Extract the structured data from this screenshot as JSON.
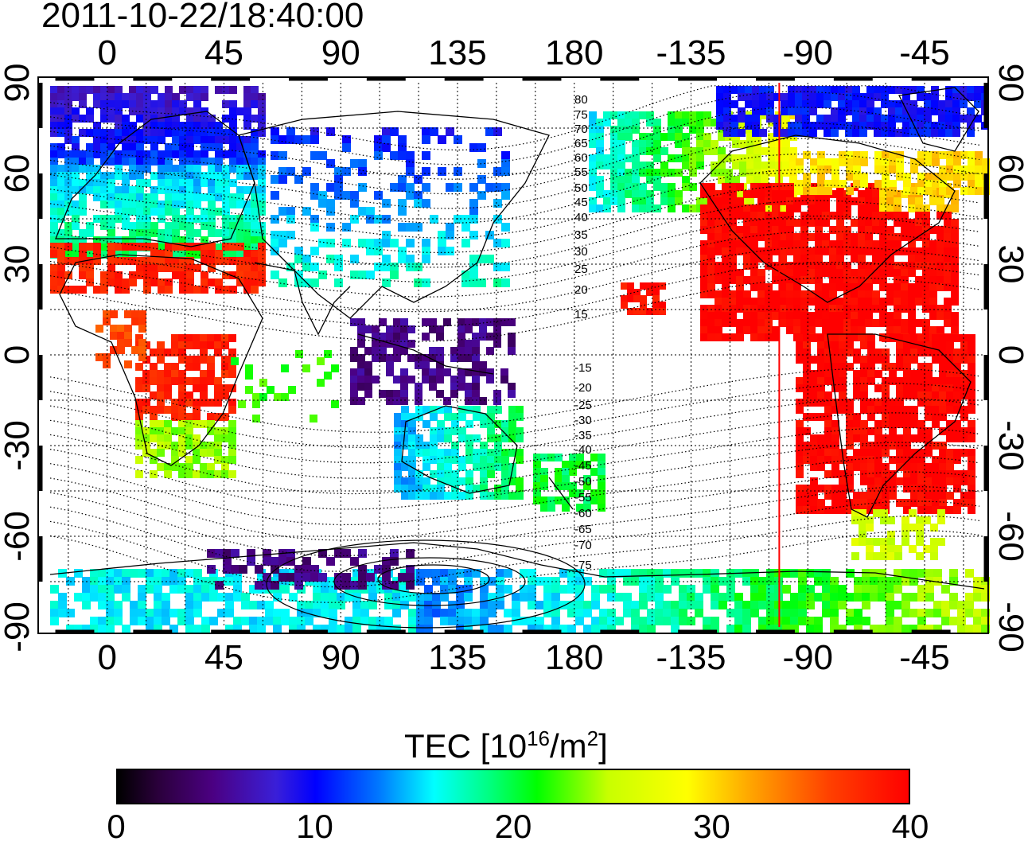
{
  "timestamp": "2011-10-22/18:40:00",
  "axes": {
    "x_ticks": [
      "0",
      "45",
      "90",
      "135",
      "180",
      "-135",
      "-90",
      "-45"
    ],
    "y_ticks": [
      "90",
      "60",
      "30",
      "0",
      "-30",
      "-60",
      "-90"
    ]
  },
  "contour_labels": [
    "80",
    "75",
    "70",
    "65",
    "60",
    "55",
    "50",
    "45",
    "40",
    "35",
    "30",
    "25",
    "20",
    "15",
    "-15",
    "-20",
    "-25",
    "-30",
    "-35",
    "-40",
    "-45",
    "-50",
    "-55",
    "-60",
    "-65",
    "-70",
    "-75"
  ],
  "colorbar": {
    "title": "TEC  [10",
    "title_exp": "16",
    "title_unit": "/m",
    "title_unit_exp": "2",
    "title_close": "]",
    "ticks": [
      "0",
      "10",
      "20",
      "30",
      "40"
    ],
    "min": 0,
    "max": 40
  },
  "terminator_line": {
    "longitude": -101,
    "color": "#ff0000"
  },
  "colors": {
    "low": "#000000",
    "mid_low": "#0000ff",
    "mid": "#00ffff",
    "mid_high": "#00ff00",
    "high_mid": "#ffff00",
    "high": "#ff0000"
  }
}
